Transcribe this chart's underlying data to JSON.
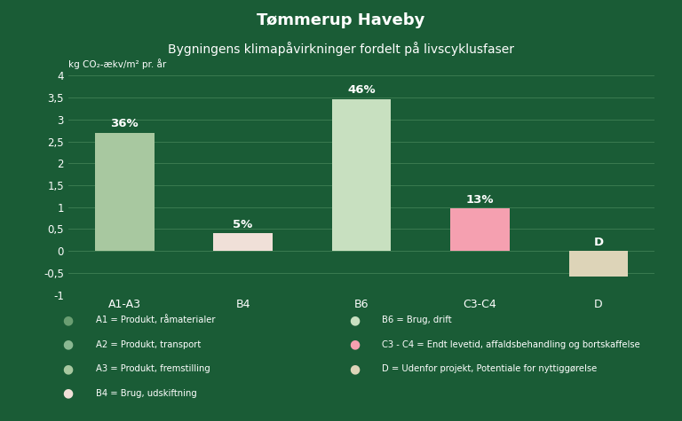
{
  "title": "Tømmerup Haveby",
  "subtitle": "Bygningens klimapåvirkninger fordelt på livscyklusfaser",
  "ylabel_short": "kg CO₂-ækv/m² pr. år",
  "categories": [
    "A1-A3",
    "B4",
    "B6",
    "C3-C4",
    "D"
  ],
  "values": [
    2.7,
    0.4,
    3.47,
    0.97,
    -0.58
  ],
  "labels": [
    "36%",
    "5%",
    "46%",
    "13%",
    "D"
  ],
  "bar_colors": [
    "#a8c8a0",
    "#f0e0d8",
    "#c8e0c0",
    "#f5a0b0",
    "#ddd4b8"
  ],
  "ylim": [
    -1,
    4
  ],
  "yticks": [
    -1,
    -0.5,
    0,
    0.5,
    1,
    1.5,
    2,
    2.5,
    3,
    3.5,
    4
  ],
  "ytick_labels": [
    "-1",
    "-0,5",
    "0",
    "0,5",
    "1",
    "1,5",
    "2",
    "2,5",
    "3",
    "3,5",
    "4"
  ],
  "background_color": "#1a5c36",
  "text_color": "#ffffff",
  "grid_color": "#3a7a50",
  "legend_items_col1": [
    {
      "label": "A1 = Produkt, råmaterialer",
      "color": "#6a9e72"
    },
    {
      "label": "A2 = Produkt, transport",
      "color": "#8ab892"
    },
    {
      "label": "A3 = Produkt, fremstilling",
      "color": "#a8c8a0"
    },
    {
      "label": "B4 = Brug, udskiftning",
      "color": "#f0e0d8"
    }
  ],
  "legend_items_col2": [
    {
      "label": "B6 = Brug, drift",
      "color": "#c8e0c0"
    },
    {
      "label": "C3 - C4 = Endt levetid, affaldsbehandling og bortskaffelse",
      "color": "#f5a0b0"
    },
    {
      "label": "D = Udenfor projekt, Potentiale for nyttiggørelse",
      "color": "#ddd4b8"
    }
  ]
}
